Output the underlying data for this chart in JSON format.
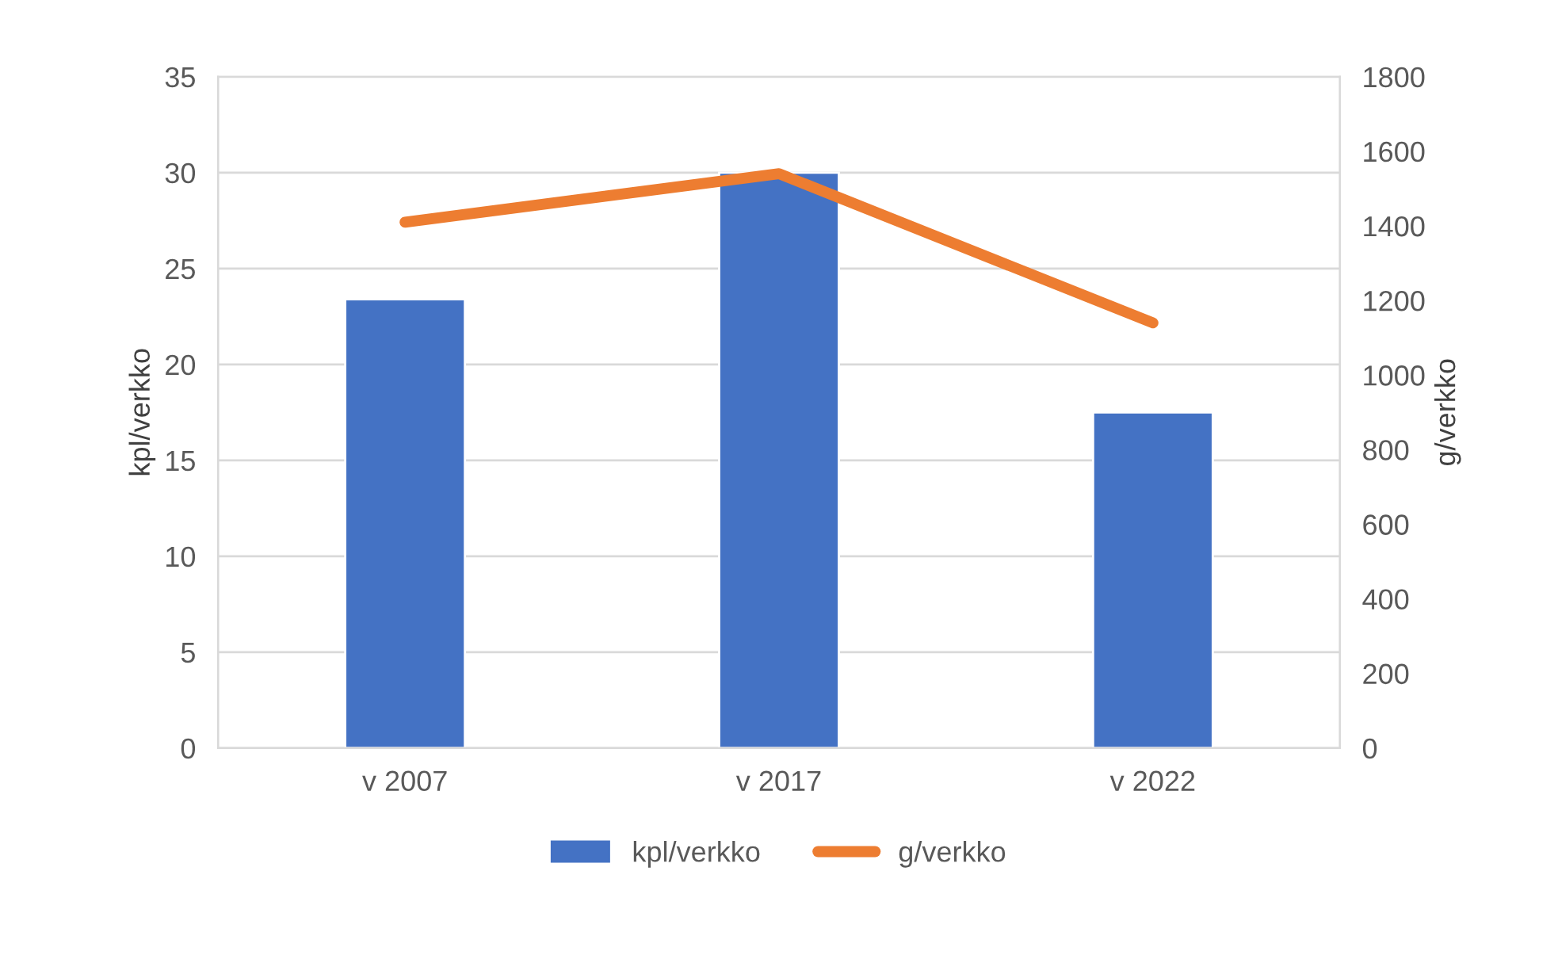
{
  "chart_data": {
    "type": "bar",
    "categories": [
      "v 2007",
      "v 2017",
      "v 2022"
    ],
    "series": [
      {
        "name": "kpl/verkko",
        "color": "#4472c4",
        "values": [
          23.4,
          30,
          17.5
        ]
      },
      {
        "name": "g/verkko",
        "type": "line",
        "axis": "y2",
        "color": "#ed7d31",
        "values": [
          1410,
          1540,
          1140
        ]
      }
    ],
    "ylabel": "kpl/verkko",
    "y2label": "g/verkko",
    "ylim": [
      0,
      35
    ],
    "yticks": [
      0,
      5,
      10,
      15,
      20,
      25,
      30,
      35
    ],
    "y2lim": [
      0,
      1800
    ],
    "y2ticks": [
      0,
      200,
      400,
      600,
      800,
      1000,
      1200,
      1400,
      1600,
      1800
    ],
    "grid": "y",
    "legend": "bottom",
    "marker": "none",
    "line_style": "solid"
  }
}
